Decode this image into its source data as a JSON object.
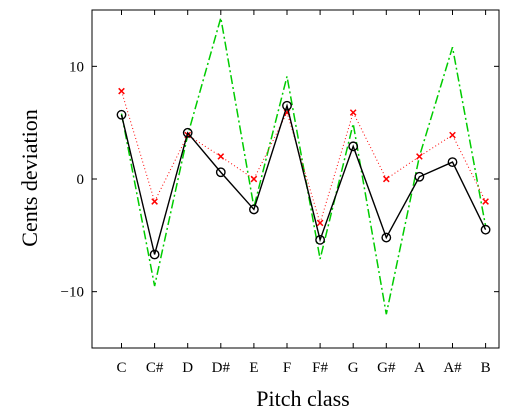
{
  "chart_data": {
    "type": "line",
    "xlabel": "Pitch class",
    "ylabel": "Cents deviation",
    "categories": [
      "C",
      "C#",
      "D",
      "D#",
      "E",
      "F",
      "F#",
      "G",
      "G#",
      "A",
      "A#",
      "B"
    ],
    "ylim": [
      -15,
      15
    ],
    "yticks": [
      -10,
      0,
      10
    ],
    "ytick_labels": [
      "−10",
      "0",
      "10"
    ],
    "grid": false,
    "series": [
      {
        "style": "solid-circles",
        "color": "#000000",
        "values": [
          5.7,
          -6.7,
          4.1,
          0.6,
          -2.7,
          6.5,
          -5.4,
          2.9,
          -5.2,
          0.2,
          1.5,
          -4.5
        ]
      },
      {
        "style": "dash-dot-green",
        "color": "#00cc00",
        "values": [
          5.8,
          -9.5,
          3.9,
          14.3,
          -2.5,
          9.1,
          -7.1,
          4.9,
          -12.0,
          2.0,
          11.7,
          -4.2
        ]
      },
      {
        "style": "dotted-red-x",
        "color": "#ff0000",
        "values": [
          7.8,
          -2.0,
          3.9,
          2.0,
          0.0,
          5.9,
          -3.9,
          5.9,
          0.0,
          2.0,
          3.9,
          -2.0
        ]
      }
    ]
  }
}
